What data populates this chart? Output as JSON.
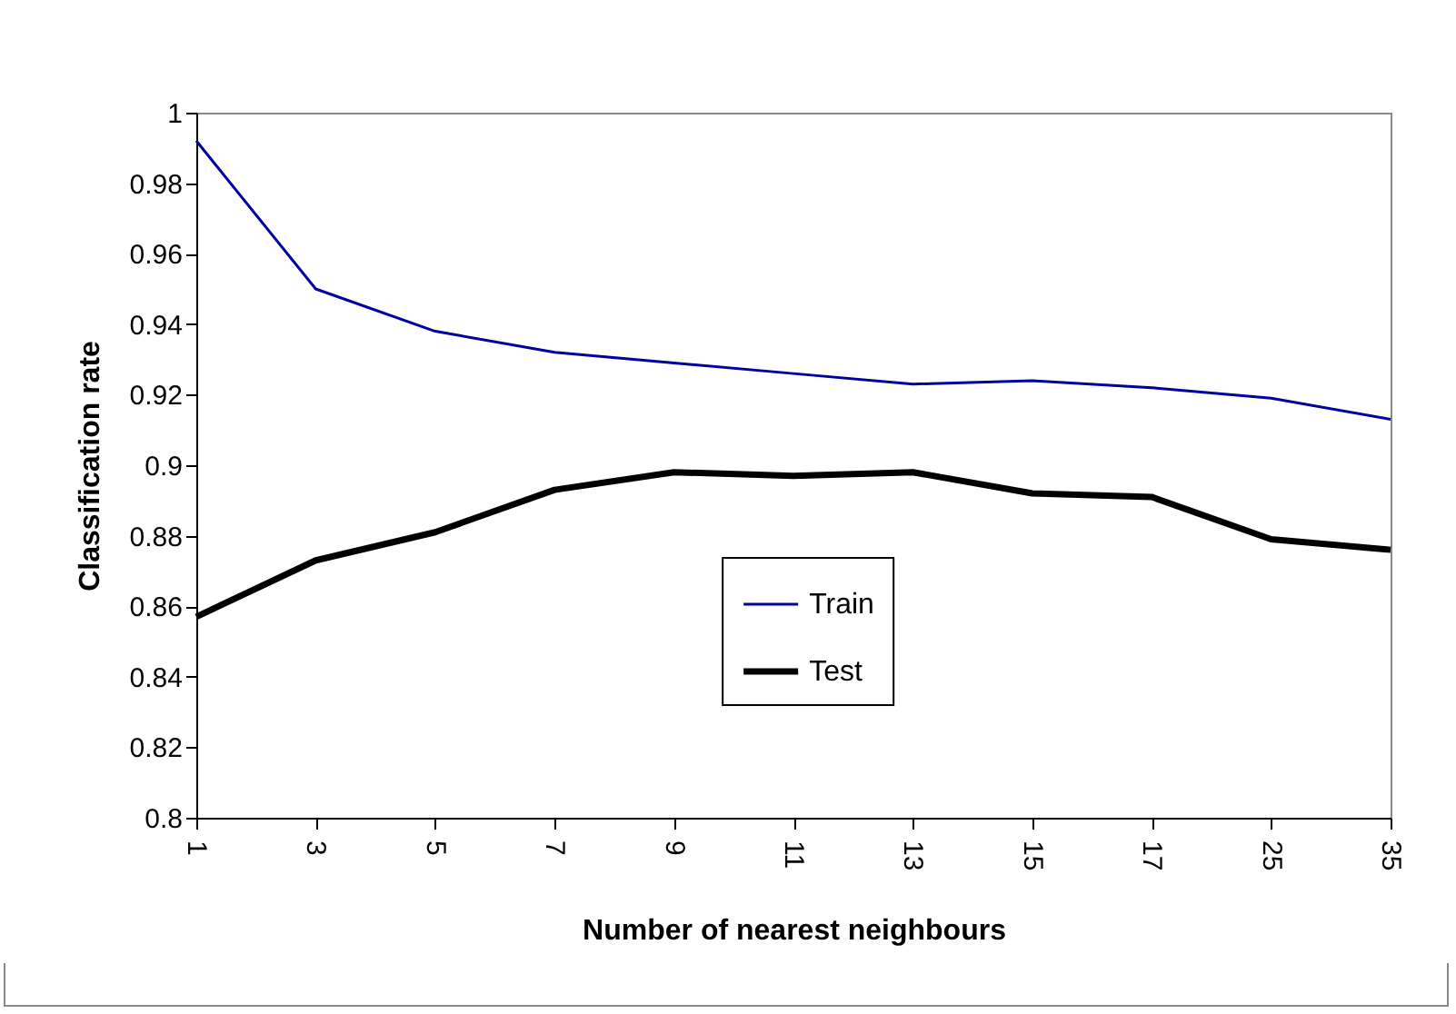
{
  "chart_data": {
    "type": "line",
    "xlabel": "Number of nearest neighbours",
    "ylabel": "Classification rate",
    "categories": [
      "1",
      "3",
      "5",
      "7",
      "9",
      "11",
      "13",
      "15",
      "17",
      "25",
      "35"
    ],
    "series": [
      {
        "name": "Train",
        "color": "#0000a0",
        "values": [
          0.992,
          0.95,
          0.938,
          0.932,
          0.929,
          0.926,
          0.923,
          0.924,
          0.922,
          0.919,
          0.913
        ]
      },
      {
        "name": "Test",
        "color": "#000000",
        "values": [
          0.857,
          0.873,
          0.881,
          0.893,
          0.898,
          0.897,
          0.898,
          0.892,
          0.891,
          0.879,
          0.876
        ]
      }
    ],
    "ylim": [
      0.8,
      1
    ],
    "yticks": [
      0.8,
      0.82,
      0.84,
      0.86,
      0.88,
      0.9,
      0.92,
      0.94,
      0.96,
      0.98,
      1
    ],
    "legend": "bottom",
    "marker": "none",
    "line_style": "solid"
  }
}
